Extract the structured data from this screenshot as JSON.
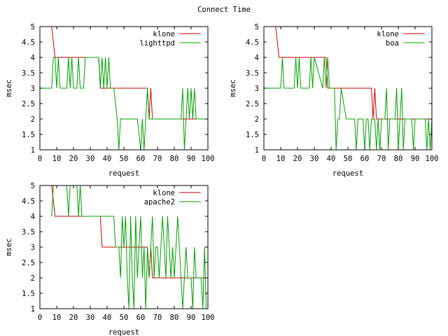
{
  "title": "Connect Time",
  "colors": {
    "klone": "#cc0000",
    "other": "#00a000",
    "frame": "#000000"
  },
  "chart_data": [
    {
      "type": "line",
      "xlabel": "request",
      "ylabel": "msec",
      "xlim": [
        0,
        100
      ],
      "ylim": [
        1,
        5
      ],
      "xticks": [
        0,
        10,
        20,
        30,
        40,
        50,
        60,
        70,
        80,
        90,
        100
      ],
      "yticks": [
        1,
        1.5,
        2,
        2.5,
        3,
        3.5,
        4,
        4.5,
        5
      ],
      "legend_position": "top-right",
      "series": [
        {
          "name": "klone",
          "color": "#cc0000",
          "x": [
            7,
            9,
            35,
            36,
            64,
            65,
            66,
            67,
            100
          ],
          "y": [
            5,
            4,
            4,
            3,
            3,
            2,
            3,
            2,
            2
          ]
        },
        {
          "name": "lighttpd",
          "color": "#00a000",
          "x": [
            0,
            7,
            8,
            9,
            10,
            11,
            12,
            16,
            17,
            18,
            19,
            20,
            22,
            23,
            24,
            26,
            27,
            28,
            29,
            35,
            36,
            37,
            38,
            39,
            40,
            41,
            42,
            44,
            46,
            47,
            48,
            50,
            52,
            54,
            58,
            60,
            61,
            62,
            63,
            64,
            65,
            84,
            85,
            86,
            87,
            88,
            89,
            90,
            91,
            92,
            93,
            100
          ],
          "y": [
            3,
            3,
            4,
            4,
            3,
            4,
            3,
            3,
            4,
            3,
            4,
            3,
            3,
            4,
            3,
            3,
            4,
            4,
            4,
            4,
            3,
            4,
            3,
            4,
            3,
            4,
            3,
            3,
            2,
            1,
            2,
            2,
            2,
            2,
            2,
            1,
            2,
            1,
            2,
            3,
            2,
            2,
            3,
            1,
            2,
            3,
            2,
            3,
            2,
            3,
            2,
            2
          ]
        }
      ]
    },
    {
      "type": "line",
      "xlabel": "request",
      "ylabel": "msec",
      "xlim": [
        0,
        100
      ],
      "ylim": [
        1,
        5
      ],
      "xticks": [
        0,
        10,
        20,
        30,
        40,
        50,
        60,
        70,
        80,
        90,
        100
      ],
      "yticks": [
        1,
        1.5,
        2,
        2.5,
        3,
        3.5,
        4,
        4.5,
        5
      ],
      "legend_position": "top-right",
      "series": [
        {
          "name": "klone",
          "color": "#cc0000",
          "x": [
            7,
            9,
            37,
            38,
            64,
            65,
            66,
            67,
            100
          ],
          "y": [
            5,
            4,
            4,
            3,
            3,
            2,
            3,
            2,
            2
          ]
        },
        {
          "name": "boa",
          "color": "#00a000",
          "x": [
            0,
            10,
            11,
            12,
            18,
            19,
            20,
            21,
            22,
            27,
            28,
            29,
            30,
            35,
            36,
            37,
            38,
            39,
            42,
            43,
            44,
            45,
            46,
            49,
            50,
            54,
            55,
            56,
            59,
            60,
            61,
            62,
            63,
            64,
            66,
            67,
            68,
            69,
            70,
            72,
            73,
            74,
            75,
            78,
            79,
            80,
            81,
            82,
            83,
            84,
            88,
            89,
            90,
            91,
            96,
            97,
            98,
            99,
            100
          ],
          "y": [
            3,
            3,
            4,
            3,
            3,
            4,
            3,
            4,
            3,
            3,
            4,
            3,
            4,
            3,
            4,
            3,
            4,
            3,
            3,
            1,
            2,
            2,
            3,
            2,
            2,
            2,
            1,
            2,
            2,
            1,
            2,
            2,
            1,
            2,
            2,
            1,
            2,
            1,
            2,
            2,
            3,
            1,
            2,
            2,
            3,
            1,
            2,
            3,
            1,
            2,
            2,
            1,
            2,
            2,
            2,
            1,
            2,
            1,
            2
          ]
        }
      ]
    },
    {
      "type": "line",
      "xlabel": "request",
      "ylabel": "msec",
      "xlim": [
        0,
        100
      ],
      "ylim": [
        1,
        5
      ],
      "xticks": [
        0,
        10,
        20,
        30,
        40,
        50,
        60,
        70,
        80,
        90,
        100
      ],
      "yticks": [
        1,
        1.5,
        2,
        2.5,
        3,
        3.5,
        4,
        4.5,
        5
      ],
      "legend_position": "top-right",
      "series": [
        {
          "name": "klone",
          "color": "#cc0000",
          "x": [
            7,
            9,
            36,
            37,
            64,
            65,
            66,
            67,
            100
          ],
          "y": [
            5,
            4,
            4,
            3,
            3,
            2,
            3,
            2,
            2
          ]
        },
        {
          "name": "apache2",
          "color": "#00a000",
          "x": [
            7,
            8,
            9,
            10,
            16,
            17,
            18,
            22,
            23,
            24,
            25,
            44,
            45,
            47,
            48,
            49,
            50,
            51,
            52,
            53,
            54,
            55,
            56,
            57,
            58,
            59,
            60,
            61,
            62,
            63,
            64,
            65,
            66,
            67,
            68,
            69,
            70,
            71,
            72,
            73,
            74,
            75,
            76,
            78,
            79,
            80,
            81,
            82,
            83,
            84,
            85,
            86,
            87,
            88,
            90,
            91,
            92,
            93,
            96,
            97,
            98,
            99,
            100
          ],
          "y": [
            4,
            5,
            5,
            5,
            5,
            4,
            5,
            5,
            4,
            5,
            4,
            4,
            3,
            3,
            2,
            4,
            3,
            4,
            2,
            1,
            4,
            2,
            1,
            4,
            2,
            3,
            4,
            2,
            3,
            1,
            3,
            2,
            3,
            4,
            2,
            3,
            3,
            2,
            3,
            4,
            3,
            2,
            4,
            2,
            3,
            2,
            3,
            4,
            3,
            2,
            1,
            2,
            3,
            2,
            2,
            1,
            3,
            2,
            2,
            1,
            3,
            1,
            1
          ]
        }
      ]
    }
  ]
}
